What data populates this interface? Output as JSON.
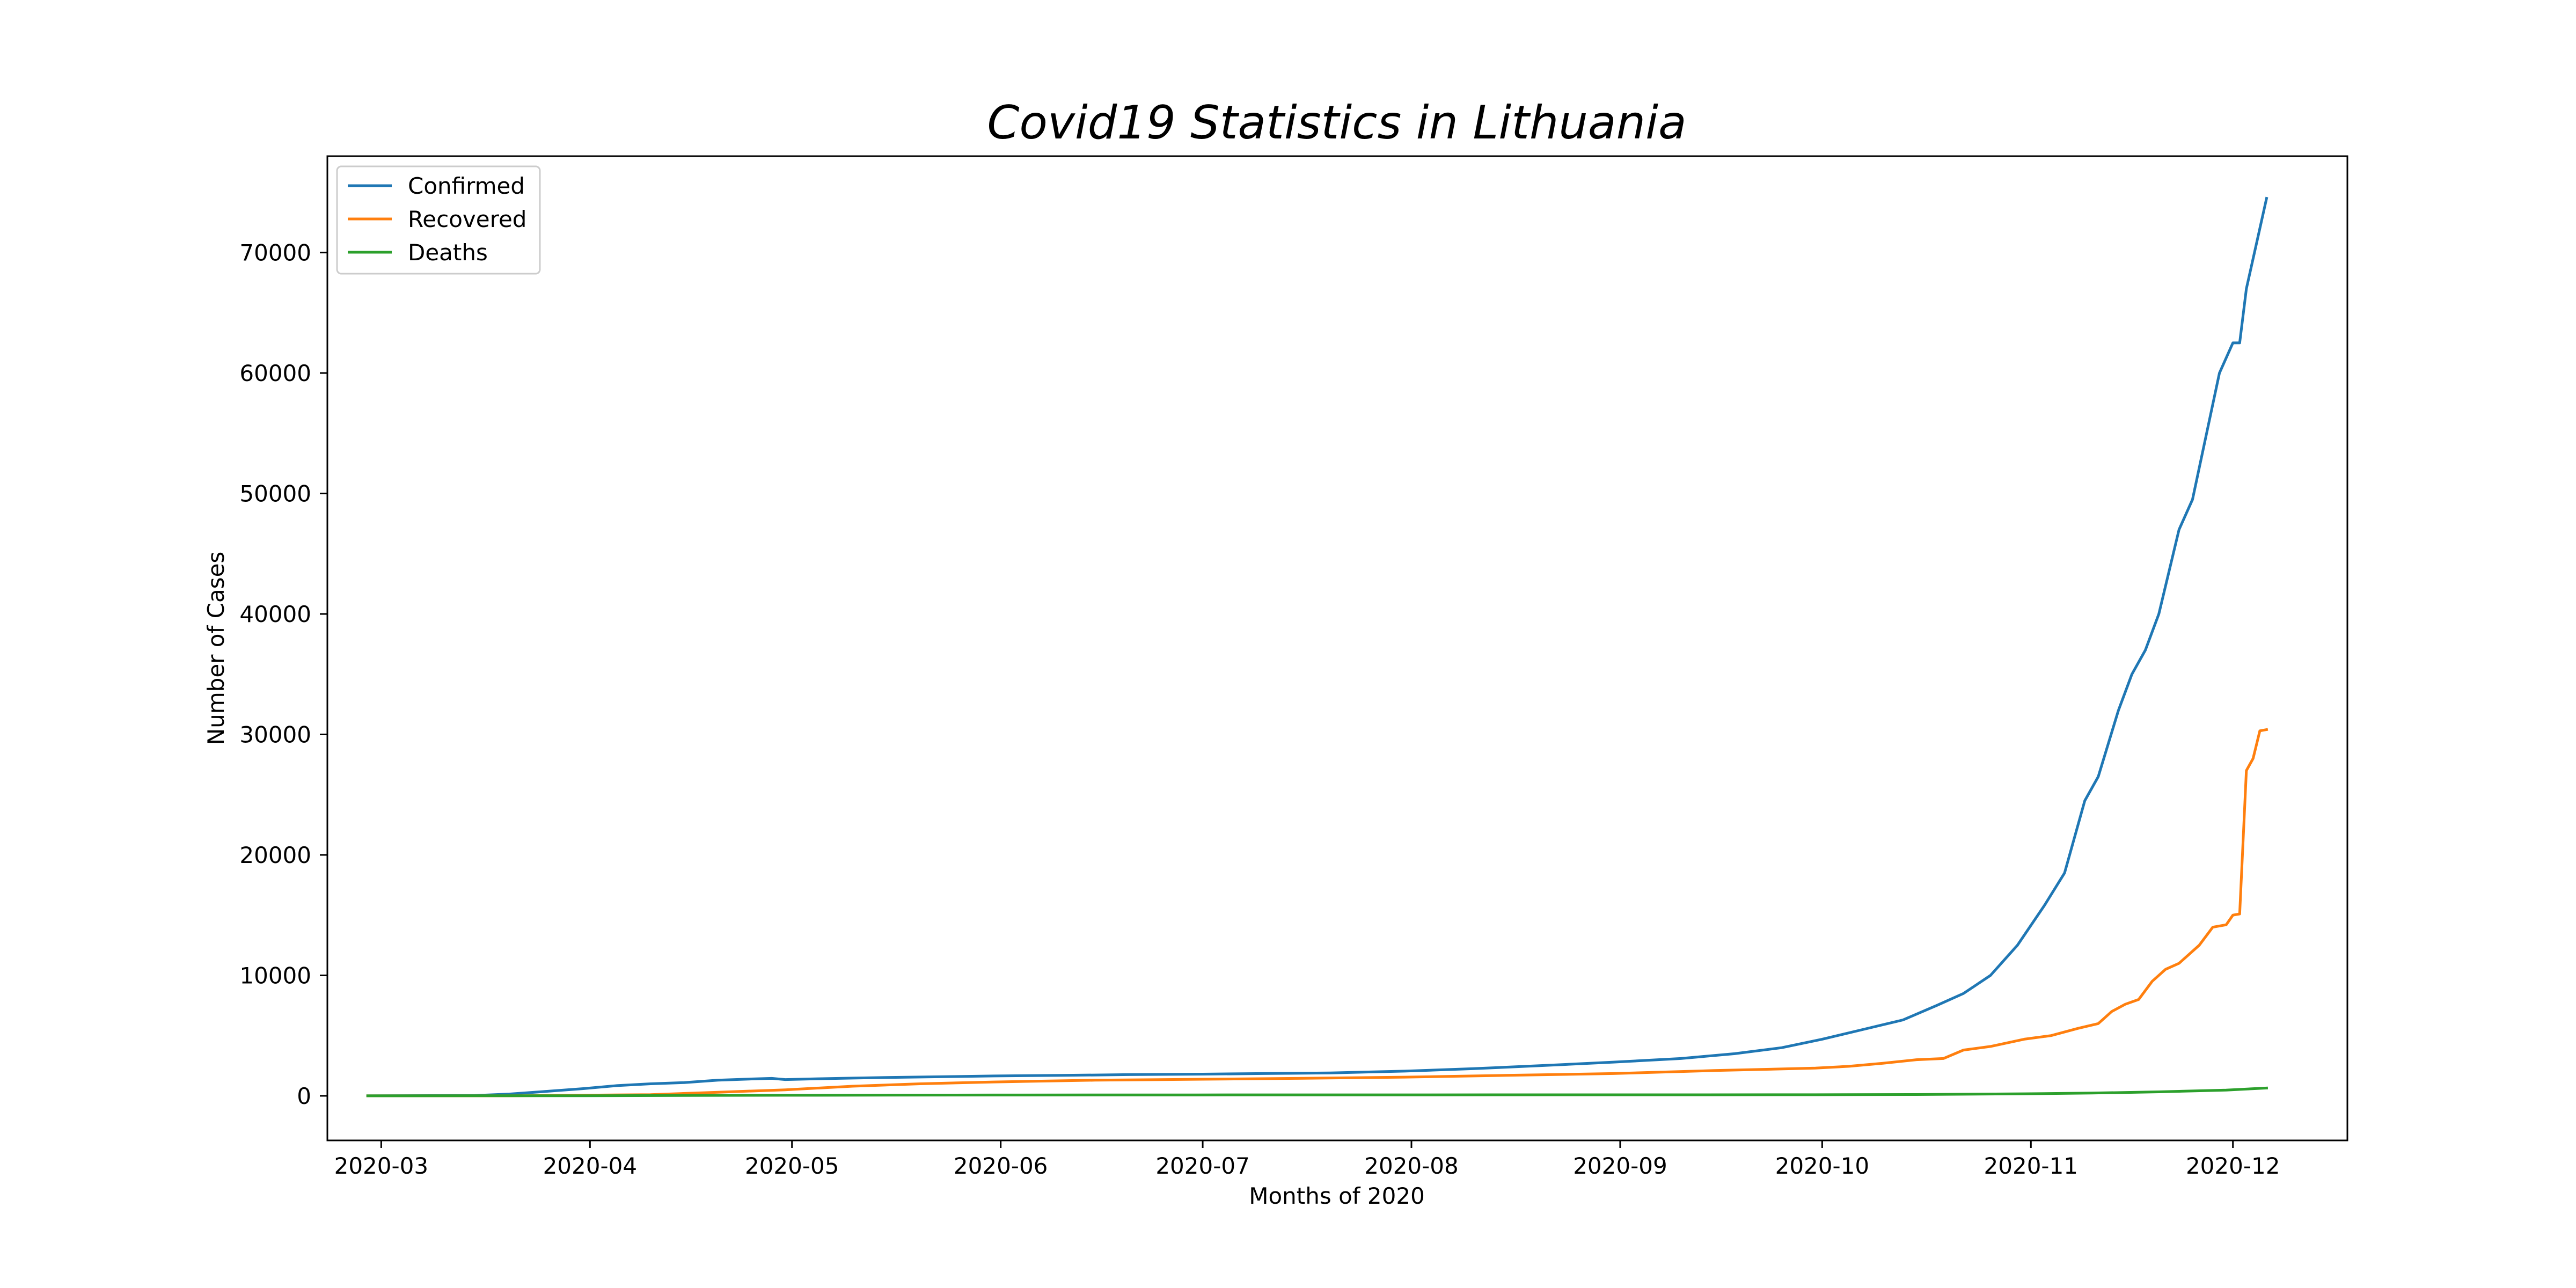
{
  "chart_data": {
    "type": "line",
    "title": "Covid19 Statistics in Lithuania",
    "xlabel": "Months of 2020",
    "ylabel": "Number of Cases",
    "x_ticks": [
      "2020-03",
      "2020-04",
      "2020-05",
      "2020-06",
      "2020-07",
      "2020-08",
      "2020-09",
      "2020-10",
      "2020-11",
      "2020-12"
    ],
    "y_ticks": [
      0,
      10000,
      20000,
      30000,
      40000,
      50000,
      60000,
      70000
    ],
    "xlim": [
      "2020-02-22",
      "2020-12-18"
    ],
    "ylim": [
      -3700,
      78000
    ],
    "grid": false,
    "legend_position": "top-left",
    "series": [
      {
        "name": "Confirmed",
        "color": "#1f77b4",
        "points": [
          [
            "2020-02-28",
            1
          ],
          [
            "2020-03-15",
            30
          ],
          [
            "2020-03-20",
            150
          ],
          [
            "2020-03-25",
            350
          ],
          [
            "2020-03-31",
            600
          ],
          [
            "2020-04-05",
            850
          ],
          [
            "2020-04-10",
            1000
          ],
          [
            "2020-04-15",
            1100
          ],
          [
            "2020-04-20",
            1300
          ],
          [
            "2020-04-25",
            1400
          ],
          [
            "2020-04-28",
            1450
          ],
          [
            "2020-04-30",
            1350
          ],
          [
            "2020-05-05",
            1420
          ],
          [
            "2020-05-10",
            1470
          ],
          [
            "2020-05-15",
            1520
          ],
          [
            "2020-05-20",
            1560
          ],
          [
            "2020-05-25",
            1600
          ],
          [
            "2020-05-31",
            1650
          ],
          [
            "2020-06-10",
            1700
          ],
          [
            "2020-06-20",
            1760
          ],
          [
            "2020-07-01",
            1800
          ],
          [
            "2020-07-10",
            1850
          ],
          [
            "2020-07-20",
            1900
          ],
          [
            "2020-07-31",
            2050
          ],
          [
            "2020-08-10",
            2250
          ],
          [
            "2020-08-20",
            2500
          ],
          [
            "2020-08-31",
            2800
          ],
          [
            "2020-09-10",
            3100
          ],
          [
            "2020-09-18",
            3500
          ],
          [
            "2020-09-25",
            4000
          ],
          [
            "2020-10-01",
            4700
          ],
          [
            "2020-10-07",
            5500
          ],
          [
            "2020-10-13",
            6300
          ],
          [
            "2020-10-18",
            7500
          ],
          [
            "2020-10-22",
            8500
          ],
          [
            "2020-10-26",
            10000
          ],
          [
            "2020-10-30",
            12500
          ],
          [
            "2020-11-03",
            15800
          ],
          [
            "2020-11-06",
            18500
          ],
          [
            "2020-11-09",
            24500
          ],
          [
            "2020-11-11",
            26500
          ],
          [
            "2020-11-14",
            32000
          ],
          [
            "2020-11-16",
            35000
          ],
          [
            "2020-11-18",
            37000
          ],
          [
            "2020-11-20",
            40000
          ],
          [
            "2020-11-23",
            47000
          ],
          [
            "2020-11-25",
            49500
          ],
          [
            "2020-11-29",
            60000
          ],
          [
            "2020-12-01",
            62500
          ],
          [
            "2020-12-02",
            62500
          ],
          [
            "2020-12-03",
            67000
          ],
          [
            "2020-12-05",
            72000
          ],
          [
            "2020-12-06",
            74500
          ]
        ]
      },
      {
        "name": "Recovered",
        "color": "#ff7f0e",
        "points": [
          [
            "2020-02-28",
            0
          ],
          [
            "2020-03-20",
            0
          ],
          [
            "2020-04-10",
            100
          ],
          [
            "2020-04-20",
            300
          ],
          [
            "2020-04-30",
            500
          ],
          [
            "2020-05-10",
            800
          ],
          [
            "2020-05-20",
            1000
          ],
          [
            "2020-05-31",
            1150
          ],
          [
            "2020-06-15",
            1300
          ],
          [
            "2020-07-01",
            1380
          ],
          [
            "2020-07-15",
            1450
          ],
          [
            "2020-07-31",
            1550
          ],
          [
            "2020-08-15",
            1700
          ],
          [
            "2020-08-31",
            1850
          ],
          [
            "2020-09-15",
            2100
          ],
          [
            "2020-09-30",
            2300
          ],
          [
            "2020-10-05",
            2450
          ],
          [
            "2020-10-10",
            2700
          ],
          [
            "2020-10-15",
            3000
          ],
          [
            "2020-10-19",
            3100
          ],
          [
            "2020-10-22",
            3800
          ],
          [
            "2020-10-26",
            4100
          ],
          [
            "2020-10-31",
            4700
          ],
          [
            "2020-11-04",
            5000
          ],
          [
            "2020-11-08",
            5600
          ],
          [
            "2020-11-11",
            6000
          ],
          [
            "2020-11-13",
            7000
          ],
          [
            "2020-11-15",
            7600
          ],
          [
            "2020-11-17",
            8000
          ],
          [
            "2020-11-19",
            9500
          ],
          [
            "2020-11-21",
            10500
          ],
          [
            "2020-11-23",
            11000
          ],
          [
            "2020-11-26",
            12500
          ],
          [
            "2020-11-28",
            14000
          ],
          [
            "2020-11-30",
            14200
          ],
          [
            "2020-12-01",
            15000
          ],
          [
            "2020-12-02",
            15100
          ],
          [
            "2020-12-03",
            27000
          ],
          [
            "2020-12-04",
            28000
          ],
          [
            "2020-12-05",
            30300
          ],
          [
            "2020-12-06",
            30400
          ]
        ]
      },
      {
        "name": "Deaths",
        "color": "#2ca02c",
        "points": [
          [
            "2020-02-28",
            0
          ],
          [
            "2020-03-31",
            10
          ],
          [
            "2020-04-30",
            45
          ],
          [
            "2020-05-31",
            70
          ],
          [
            "2020-06-30",
            78
          ],
          [
            "2020-07-31",
            80
          ],
          [
            "2020-08-31",
            86
          ],
          [
            "2020-09-30",
            90
          ],
          [
            "2020-10-15",
            110
          ],
          [
            "2020-10-31",
            170
          ],
          [
            "2020-11-10",
            230
          ],
          [
            "2020-11-20",
            330
          ],
          [
            "2020-11-30",
            480
          ],
          [
            "2020-12-06",
            650
          ]
        ]
      }
    ]
  }
}
